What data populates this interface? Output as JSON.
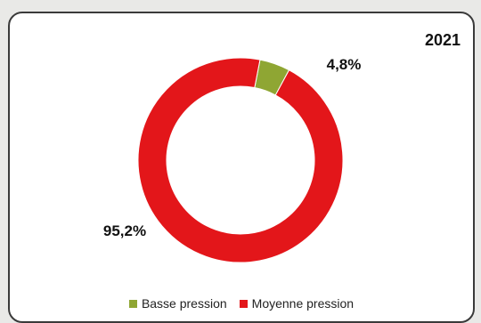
{
  "chart_data": {
    "type": "pie",
    "style": "donut",
    "title": "2021",
    "slices": [
      {
        "label": "Basse pression",
        "value": 4.8,
        "display": "4,8%",
        "color": "#8fa633"
      },
      {
        "label": "Moyenne pression",
        "value": 95.2,
        "display": "95,2%",
        "color": "#e3161a"
      }
    ],
    "legend": {
      "placement": "bottom",
      "items": [
        "Basse pression",
        "Moyenne pression"
      ]
    }
  }
}
